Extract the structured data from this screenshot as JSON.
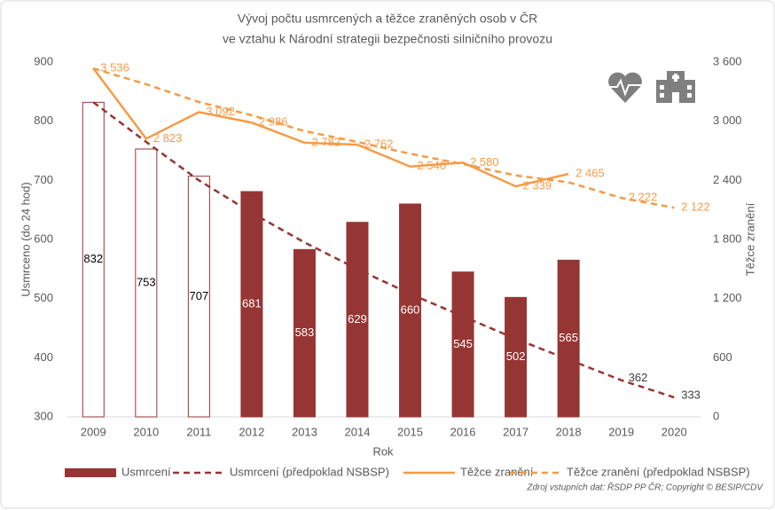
{
  "chart_data": {
    "type": "bar-line",
    "title": [
      "Vývoj počtu usmrcených a těžce zraněných osob v ČR",
      "ve vztahu k Národní strategii bezpečnosti silničního provozu"
    ],
    "x_label": "Rok",
    "y_label": "Usmrceno (do 24 hod)",
    "y2_label": "Těžce zranění",
    "source": "Zdroj vstupních dat: ŘSDP PP ČR; Copyright © BESIP/CDV",
    "categories": [
      "2009",
      "2010",
      "2011",
      "2012",
      "2013",
      "2014",
      "2015",
      "2016",
      "2017",
      "2018",
      "2019",
      "2020"
    ],
    "ylim": [
      300,
      900
    ],
    "yticks": [
      300,
      400,
      500,
      600,
      700,
      800,
      900
    ],
    "y2lim": [
      0,
      3600
    ],
    "y2ticks": [
      0,
      600,
      {
        "value": 1200,
        "label": "1 200"
      },
      {
        "value": 1800,
        "label": "1 800"
      },
      {
        "value": 2400,
        "label": "2 400"
      },
      {
        "value": 3000,
        "label": "3 000"
      },
      {
        "value": 3600,
        "label": "3 600"
      }
    ],
    "legend": "bottom",
    "series": [
      {
        "name": "Usmrcení",
        "kind": "bar",
        "color": "#963634",
        "bar_colors": [
          "#ffffff",
          "#ffffff",
          "#ffffff",
          "#963634",
          "#963634",
          "#963634",
          "#963634",
          "#963634",
          "#963634",
          "#963634",
          null,
          null
        ],
        "values": [
          832,
          753,
          707,
          681,
          583,
          629,
          660,
          545,
          502,
          565,
          null,
          null
        ]
      },
      {
        "name": "Usmrcení (předpoklad NSBSP)",
        "kind": "line",
        "dashed": true,
        "color": "#963634",
        "values": [
          832,
          765,
          700,
          645,
          595,
          550,
          508,
          470,
          432,
          397,
          362,
          333
        ],
        "value_labels": [
          null,
          null,
          null,
          null,
          null,
          null,
          null,
          null,
          null,
          null,
          "362",
          "333"
        ]
      },
      {
        "name": "Těžce zranění",
        "kind": "line",
        "dashed": false,
        "color": "#f59b46",
        "axis": "y2",
        "values": [
          3536,
          2823,
          3092,
          2986,
          2782,
          2762,
          2540,
          2580,
          2339,
          2465,
          null,
          null
        ],
        "value_labels": [
          "3 536",
          "2 823",
          "3 092",
          "2 986",
          "2 782",
          "2 762",
          "2 540",
          "2 580",
          "2 339",
          "2 465",
          null,
          null
        ]
      },
      {
        "name": "Těžce zranění (předpoklad NSBSP)",
        "kind": "line",
        "dashed": true,
        "color": "#f59b46",
        "axis": "y2",
        "values": [
          3536,
          3375,
          3195,
          3060,
          2900,
          2790,
          2670,
          2565,
          2450,
          2380,
          2222,
          2122
        ],
        "value_labels": [
          null,
          null,
          null,
          null,
          null,
          null,
          null,
          null,
          null,
          null,
          "2 222",
          "2 122"
        ]
      }
    ]
  }
}
